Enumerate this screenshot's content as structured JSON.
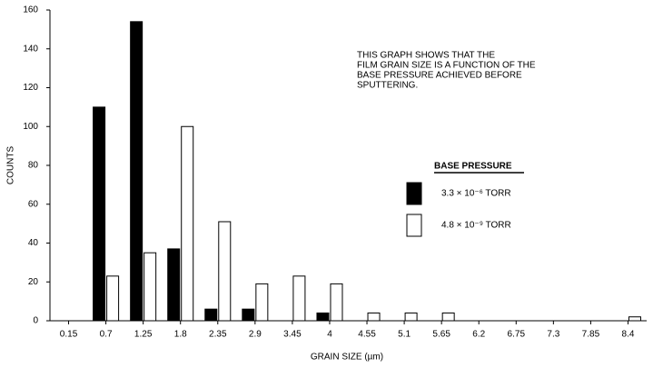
{
  "chart_data": {
    "type": "bar",
    "annotation": [
      "THIS GRAPH SHOWS THAT THE",
      "FILM GRAIN SIZE IS A FUNCTION OF THE",
      "BASE PRESSURE ACHIEVED BEFORE",
      "SPUTTERING."
    ],
    "legend_title": "BASE PRESSURE",
    "x_label": "GRAIN SIZE (µm)",
    "y_label": "COUNTS",
    "categories": [
      "0.15",
      "0.7",
      "1.25",
      "1.8",
      "2.35",
      "2.9",
      "3.45",
      "4",
      "4.55",
      "5.1",
      "5.65",
      "6.2",
      "6.75",
      "7.3",
      "7.85",
      "8.4"
    ],
    "series": [
      {
        "name": "3.3 × 10⁻⁶ TORR",
        "color": "#000000",
        "values": [
          0,
          110,
          154,
          37,
          6,
          6,
          0,
          4,
          0,
          0,
          0,
          0,
          0,
          0,
          0,
          0
        ]
      },
      {
        "name": "4.8 × 10⁻⁹ TORR",
        "color": "#ffffff",
        "values": [
          0,
          23,
          35,
          100,
          51,
          19,
          23,
          19,
          4,
          4,
          4,
          0,
          0,
          0,
          0,
          2
        ]
      }
    ],
    "ylim": [
      0,
      160
    ],
    "yticks": [
      0,
      20,
      40,
      60,
      80,
      100,
      120,
      140,
      160
    ]
  }
}
